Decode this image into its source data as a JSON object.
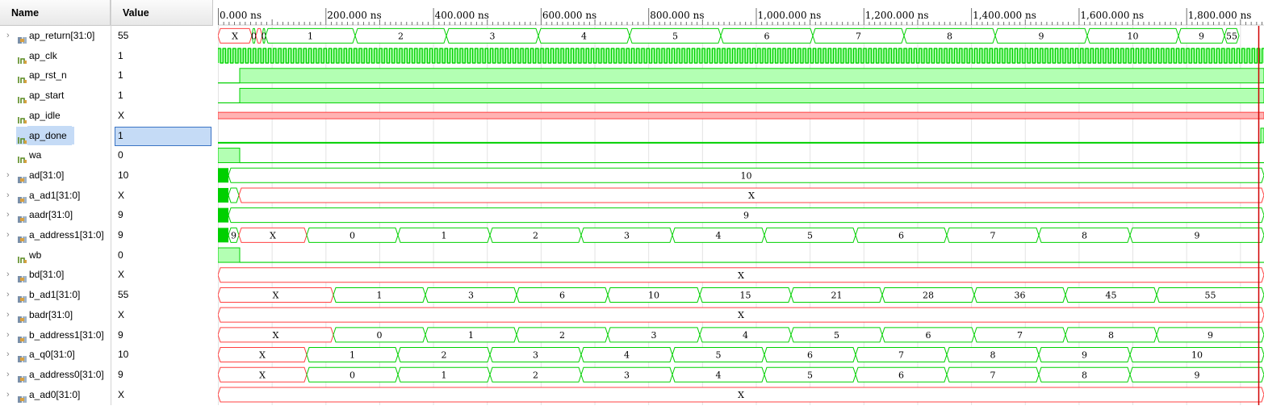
{
  "headers": {
    "name": "Name",
    "value": "Value"
  },
  "timeline": {
    "ticks": [
      "0.000 ns",
      "200.000 ns",
      "400.000 ns",
      "600.000 ns",
      "800.000 ns",
      "1,000.000 ns",
      "1,200.000 ns",
      "1,400.000 ns",
      "1,600.000 ns",
      "1,800.000 ns"
    ],
    "cursor_color": "#d00000"
  },
  "colors": {
    "wave": "#00d000",
    "fill": "#b3ffb3",
    "undef": "#ff4040",
    "undef_fill": "#ffb3b3"
  },
  "signals": [
    {
      "name": "ap_return[31:0]",
      "value": "55",
      "kind": "bus",
      "expand": true,
      "icon": "bus-icon",
      "segs": [
        [
          "X",
          true
        ],
        [
          "0",
          false
        ],
        [
          "",
          true
        ],
        [
          "0",
          false
        ],
        [
          "1",
          false
        ],
        [
          "2",
          false
        ],
        [
          "3",
          false
        ],
        [
          "4",
          false
        ],
        [
          "5",
          false
        ],
        [
          "6",
          false
        ],
        [
          "7",
          false
        ],
        [
          "8",
          false
        ],
        [
          "9",
          false
        ],
        [
          "10",
          false
        ],
        [
          "9",
          false
        ],
        [
          "55",
          false
        ]
      ]
    },
    {
      "name": "ap_clk",
      "value": "1",
      "kind": "clock",
      "expand": false,
      "icon": "bit-icon"
    },
    {
      "name": "ap_rst_n",
      "value": "1",
      "kind": "bit",
      "expand": false,
      "icon": "bit-icon"
    },
    {
      "name": "ap_start",
      "value": "1",
      "kind": "bit",
      "expand": false,
      "icon": "bit-icon"
    },
    {
      "name": "ap_idle",
      "value": "X",
      "kind": "bitx",
      "expand": false,
      "icon": "bit-icon"
    },
    {
      "name": "ap_done",
      "value": "1",
      "kind": "bitlow",
      "expand": false,
      "icon": "bit-icon",
      "selected": true
    },
    {
      "name": "wa",
      "value": "0",
      "kind": "pulse",
      "expand": false,
      "icon": "bit-icon"
    },
    {
      "name": "ad[31:0]",
      "value": "10",
      "kind": "bus",
      "expand": true,
      "icon": "bus-icon",
      "segs": [
        [
          "",
          false
        ],
        [
          "10",
          false
        ]
      ]
    },
    {
      "name": "a_ad1[31:0]",
      "value": "X",
      "kind": "bus",
      "expand": true,
      "icon": "bus-icon",
      "segs": [
        [
          "",
          false
        ],
        [
          "",
          false
        ],
        [
          "X",
          true
        ]
      ]
    },
    {
      "name": "aadr[31:0]",
      "value": "9",
      "kind": "bus",
      "expand": true,
      "icon": "bus-icon",
      "segs": [
        [
          "",
          false
        ],
        [
          "9",
          false
        ]
      ]
    },
    {
      "name": "a_address1[31:0]",
      "value": "9",
      "kind": "bus",
      "expand": true,
      "icon": "bus-icon",
      "segs": [
        [
          "",
          false
        ],
        [
          "9",
          false
        ],
        [
          "X",
          true
        ],
        [
          "0",
          false
        ],
        [
          "1",
          false
        ],
        [
          "2",
          false
        ],
        [
          "3",
          false
        ],
        [
          "4",
          false
        ],
        [
          "5",
          false
        ],
        [
          "6",
          false
        ],
        [
          "7",
          false
        ],
        [
          "8",
          false
        ],
        [
          "9",
          false
        ]
      ]
    },
    {
      "name": "wb",
      "value": "0",
      "kind": "pulse",
      "expand": false,
      "icon": "bit-icon"
    },
    {
      "name": "bd[31:0]",
      "value": "X",
      "kind": "bus",
      "expand": true,
      "icon": "bus-icon",
      "segs": [
        [
          "X",
          true
        ]
      ]
    },
    {
      "name": "b_ad1[31:0]",
      "value": "55",
      "kind": "bus",
      "expand": true,
      "icon": "bus-icon",
      "segs": [
        [
          "X",
          true
        ],
        [
          "1",
          false
        ],
        [
          "3",
          false
        ],
        [
          "6",
          false
        ],
        [
          "10",
          false
        ],
        [
          "15",
          false
        ],
        [
          "21",
          false
        ],
        [
          "28",
          false
        ],
        [
          "36",
          false
        ],
        [
          "45",
          false
        ],
        [
          "55",
          false
        ]
      ]
    },
    {
      "name": "badr[31:0]",
      "value": "X",
      "kind": "bus",
      "expand": true,
      "icon": "bus-icon",
      "segs": [
        [
          "X",
          true
        ]
      ]
    },
    {
      "name": "b_address1[31:0]",
      "value": "9",
      "kind": "bus",
      "expand": true,
      "icon": "bus-icon",
      "segs": [
        [
          "X",
          true
        ],
        [
          "0",
          false
        ],
        [
          "1",
          false
        ],
        [
          "2",
          false
        ],
        [
          "3",
          false
        ],
        [
          "4",
          false
        ],
        [
          "5",
          false
        ],
        [
          "6",
          false
        ],
        [
          "7",
          false
        ],
        [
          "8",
          false
        ],
        [
          "9",
          false
        ]
      ]
    },
    {
      "name": "a_q0[31:0]",
      "value": "10",
      "kind": "bus",
      "expand": true,
      "icon": "bus-icon",
      "segs": [
        [
          "X",
          true
        ],
        [
          "1",
          false
        ],
        [
          "2",
          false
        ],
        [
          "3",
          false
        ],
        [
          "4",
          false
        ],
        [
          "5",
          false
        ],
        [
          "6",
          false
        ],
        [
          "7",
          false
        ],
        [
          "8",
          false
        ],
        [
          "9",
          false
        ],
        [
          "10",
          false
        ]
      ]
    },
    {
      "name": "a_address0[31:0]",
      "value": "9",
      "kind": "bus",
      "expand": true,
      "icon": "bus-icon",
      "segs": [
        [
          "X",
          true
        ],
        [
          "0",
          false
        ],
        [
          "1",
          false
        ],
        [
          "2",
          false
        ],
        [
          "3",
          false
        ],
        [
          "4",
          false
        ],
        [
          "5",
          false
        ],
        [
          "6",
          false
        ],
        [
          "7",
          false
        ],
        [
          "8",
          false
        ],
        [
          "9",
          false
        ]
      ]
    },
    {
      "name": "a_ad0[31:0]",
      "value": "X",
      "kind": "bus",
      "expand": true,
      "icon": "bus-icon",
      "segs": [
        [
          "X",
          true
        ]
      ]
    }
  ]
}
